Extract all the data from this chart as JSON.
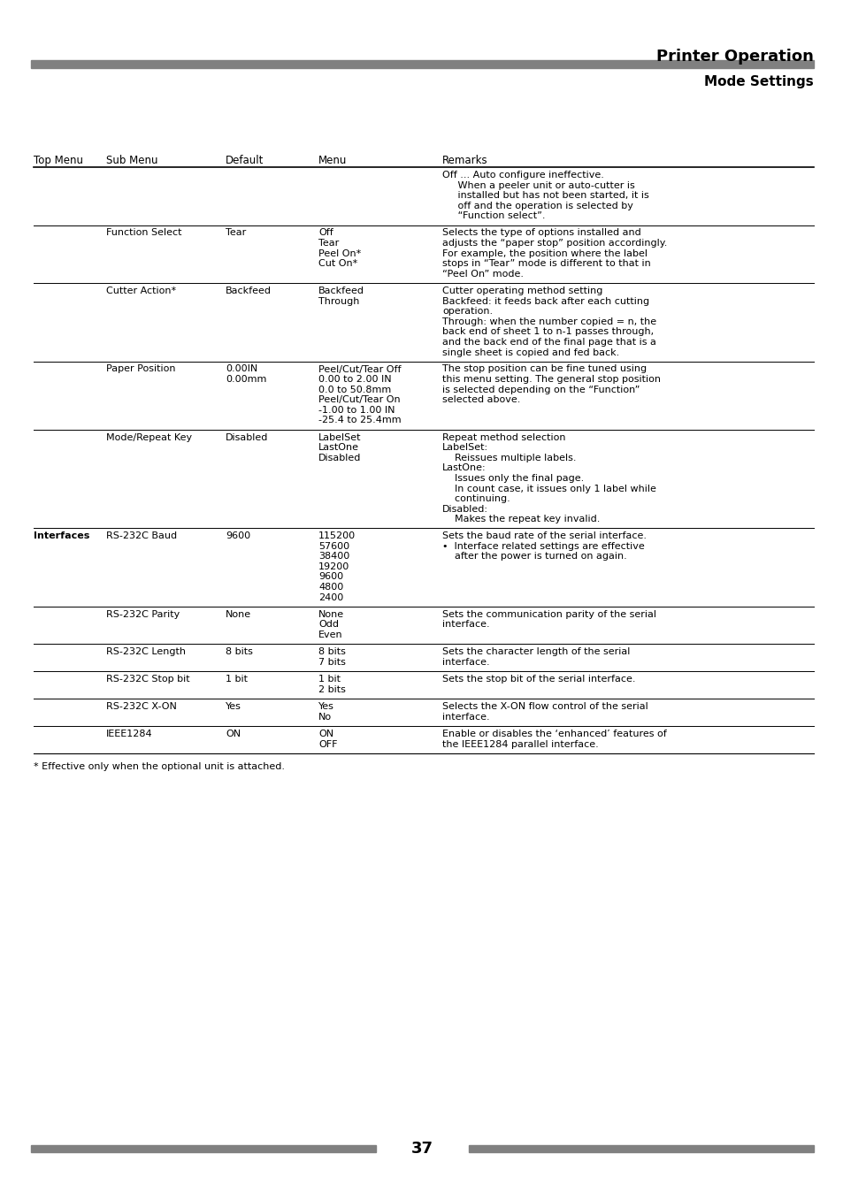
{
  "title": "Printer Operation",
  "subtitle": "Mode Settings",
  "page_number": "37",
  "bg_color": "#ffffff",
  "header_bar_color": "#808080",
  "footer_bar_color": "#808080",
  "col_headers": [
    "Top Menu",
    "Sub Menu",
    "Default",
    "Menu",
    "Remarks"
  ],
  "footnote": "* Effective only when the optional unit is attached.",
  "rows": [
    {
      "top_menu": "",
      "sub_menu": "",
      "default": "",
      "menu": "",
      "remarks": "Off ... Auto configure ineffective.\n     When a peeler unit or auto-cutter is\n     installed but has not been started, it is\n     off and the operation is selected by\n     “Function select”.",
      "has_top_border": false,
      "top_menu_bold": false
    },
    {
      "top_menu": "",
      "sub_menu": "Function Select",
      "default": "Tear",
      "menu": "Off\nTear\nPeel On*\nCut On*",
      "remarks": "Selects the type of options installed and\nadjusts the “paper stop” position accordingly.\nFor example, the position where the label\nstops in “Tear” mode is different to that in\n“Peel On” mode.",
      "has_top_border": true,
      "top_menu_bold": false
    },
    {
      "top_menu": "",
      "sub_menu": "Cutter Action*",
      "default": "Backfeed",
      "menu": "Backfeed\nThrough",
      "remarks": "Cutter operating method setting\nBackfeed: it feeds back after each cutting\noperation.\nThrough: when the number copied = n, the\nback end of sheet 1 to n-1 passes through,\nand the back end of the final page that is a\nsingle sheet is copied and fed back.",
      "has_top_border": true,
      "top_menu_bold": false
    },
    {
      "top_menu": "",
      "sub_menu": "Paper Position",
      "default": "0.00IN\n0.00mm",
      "menu": "Peel/Cut/Tear Off\n0.00 to 2.00 IN\n0.0 to 50.8mm\nPeel/Cut/Tear On\n-1.00 to 1.00 IN\n-25.4 to 25.4mm",
      "remarks": "The stop position can be fine tuned using\nthis menu setting. The general stop position\nis selected depending on the “Function”\nselected above.",
      "has_top_border": true,
      "top_menu_bold": false
    },
    {
      "top_menu": "",
      "sub_menu": "Mode/Repeat Key",
      "default": "Disabled",
      "menu": "LabelSet\nLastOne\nDisabled",
      "remarks": "Repeat method selection\nLabelSet:\n    Reissues multiple labels.\nLastOne:\n    Issues only the final page.\n    In count case, it issues only 1 label while\n    continuing.\nDisabled:\n    Makes the repeat key invalid.",
      "has_top_border": true,
      "top_menu_bold": false
    },
    {
      "top_menu": "Interfaces",
      "sub_menu": "RS-232C Baud",
      "default": "9600",
      "menu": "115200\n57600\n38400\n19200\n9600\n4800\n2400",
      "remarks": "Sets the baud rate of the serial interface.\n•  Interface related settings are effective\n    after the power is turned on again.",
      "has_top_border": true,
      "top_menu_bold": true
    },
    {
      "top_menu": "",
      "sub_menu": "RS-232C Parity",
      "default": "None",
      "menu": "None\nOdd\nEven",
      "remarks": "Sets the communication parity of the serial\ninterface.",
      "has_top_border": true,
      "top_menu_bold": false
    },
    {
      "top_menu": "",
      "sub_menu": "RS-232C Length",
      "default": "8 bits",
      "menu": "8 bits\n7 bits",
      "remarks": "Sets the character length of the serial\ninterface.",
      "has_top_border": true,
      "top_menu_bold": false
    },
    {
      "top_menu": "",
      "sub_menu": "RS-232C Stop bit",
      "default": "1 bit",
      "menu": "1 bit\n2 bits",
      "remarks": "Sets the stop bit of the serial interface.",
      "has_top_border": true,
      "top_menu_bold": false
    },
    {
      "top_menu": "",
      "sub_menu": "RS-232C X-ON",
      "default": "Yes",
      "menu": "Yes\nNo",
      "remarks": "Selects the X-ON flow control of the serial\ninterface.",
      "has_top_border": true,
      "top_menu_bold": false
    },
    {
      "top_menu": "",
      "sub_menu": "IEEE1284",
      "default": "ON",
      "menu": "ON\nOFF",
      "remarks": "Enable or disables the ‘enhanced’ features of\nthe IEEE1284 parallel interface.",
      "has_top_border": true,
      "top_menu_bold": false
    }
  ]
}
